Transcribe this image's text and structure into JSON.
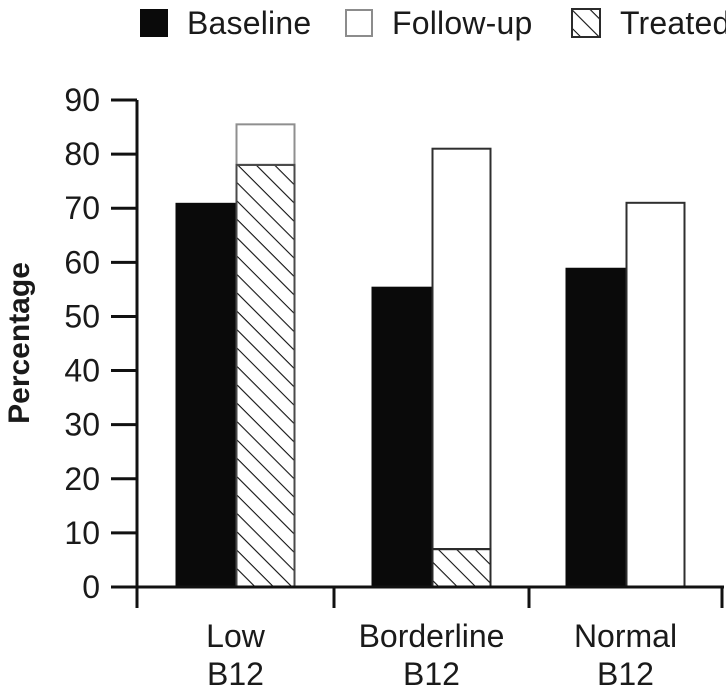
{
  "colors": {
    "background": "#ffffff",
    "ink": "#111111",
    "bar_black": "#0a0a0a",
    "open_bar_border": "#2f2f2f",
    "open_bar_border_low": "#8f8f8f",
    "hatch_bar_border": "#2b2b2b",
    "hatch_bar_border_low": "#4a4a4a",
    "legend_open_border": "#8c8c8c"
  },
  "legend": {
    "items": [
      {
        "label": "Baseline",
        "swatch": "black-square"
      },
      {
        "label": "Follow-up",
        "swatch": "open-square"
      },
      {
        "label": "Treated",
        "swatch": "hatched-square"
      }
    ]
  },
  "chart_data": {
    "type": "bar",
    "subtype": "grouped-pairs; second bar stacked (hatched Treated portion below open Follow-up portion)",
    "title": "",
    "xlabel": "",
    "ylabel": "Percentage",
    "ylim": [
      0,
      90
    ],
    "yticks": [
      0,
      10,
      20,
      30,
      40,
      50,
      60,
      70,
      80,
      90
    ],
    "grid": false,
    "legend_position": "top",
    "categories": [
      {
        "line1": "Low",
        "line2": "B12"
      },
      {
        "line1": "Borderline",
        "line2": "B12"
      },
      {
        "line1": "Normal",
        "line2": "B12"
      }
    ],
    "series": [
      {
        "name": "Baseline",
        "style": "solid-black",
        "values": [
          71,
          55.5,
          59
        ]
      },
      {
        "name": "Follow-up",
        "style": "open",
        "values": [
          85.5,
          81,
          71
        ]
      },
      {
        "name": "Treated",
        "style": "hatched",
        "values": [
          78,
          7,
          0
        ]
      }
    ]
  }
}
